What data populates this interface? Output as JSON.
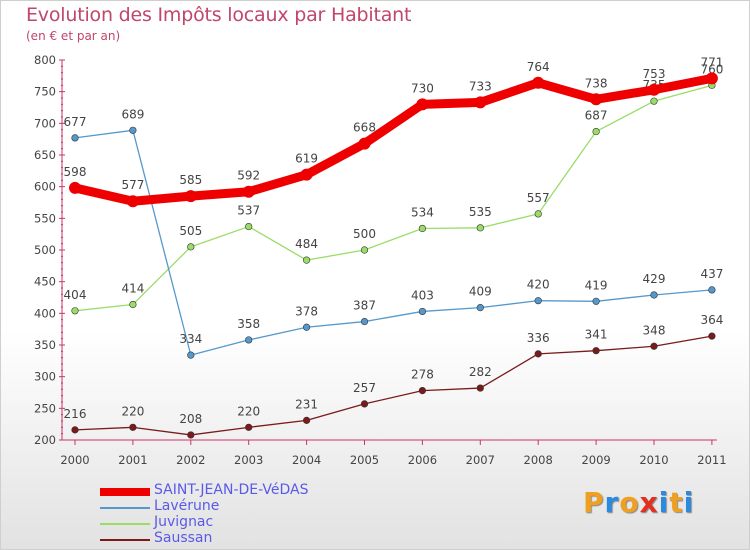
{
  "title": "Evolution des Impôts locaux par Habitant",
  "subtitle": "(en € et par an)",
  "logo": {
    "text": "Proxiti",
    "letters": [
      "P",
      "r",
      "o",
      "x",
      "i",
      "t",
      "i"
    ],
    "colors": [
      "#f0a020",
      "#2a8ae0",
      "#f0a020",
      "#e03020",
      "#2a8ae0",
      "#f0a020",
      "#2a8ae0"
    ]
  },
  "chart_data": {
    "type": "line",
    "x": [
      2000,
      2001,
      2002,
      2003,
      2004,
      2005,
      2006,
      2007,
      2008,
      2009,
      2010,
      2011
    ],
    "ylim": [
      200,
      800
    ],
    "yticks": [
      200,
      250,
      300,
      350,
      400,
      450,
      500,
      550,
      600,
      650,
      700,
      750,
      800
    ],
    "grid": false,
    "legend_position": "bottom-left",
    "series": [
      {
        "name": "Saussan",
        "color": "#7a1a1a",
        "values": [
          216,
          220,
          208,
          220,
          231,
          257,
          278,
          282,
          336,
          341,
          348,
          364
        ]
      },
      {
        "name": "Juvignac",
        "color": "#99dd66",
        "values": [
          404,
          414,
          505,
          537,
          484,
          500,
          534,
          535,
          557,
          687,
          735,
          760
        ]
      },
      {
        "name": "Lavérune",
        "color": "#5599cc",
        "values": [
          677,
          689,
          334,
          358,
          378,
          387,
          403,
          409,
          420,
          419,
          429,
          437
        ]
      },
      {
        "name": "SAINT-JEAN-DE-VéDAS",
        "color": "#ee0000",
        "values": [
          598,
          577,
          585,
          592,
          619,
          668,
          730,
          733,
          764,
          738,
          753,
          771
        ]
      }
    ],
    "legend_order": [
      "SAINT-JEAN-DE-VéDAS",
      "Lavérune",
      "Juvignac",
      "Saussan"
    ]
  }
}
